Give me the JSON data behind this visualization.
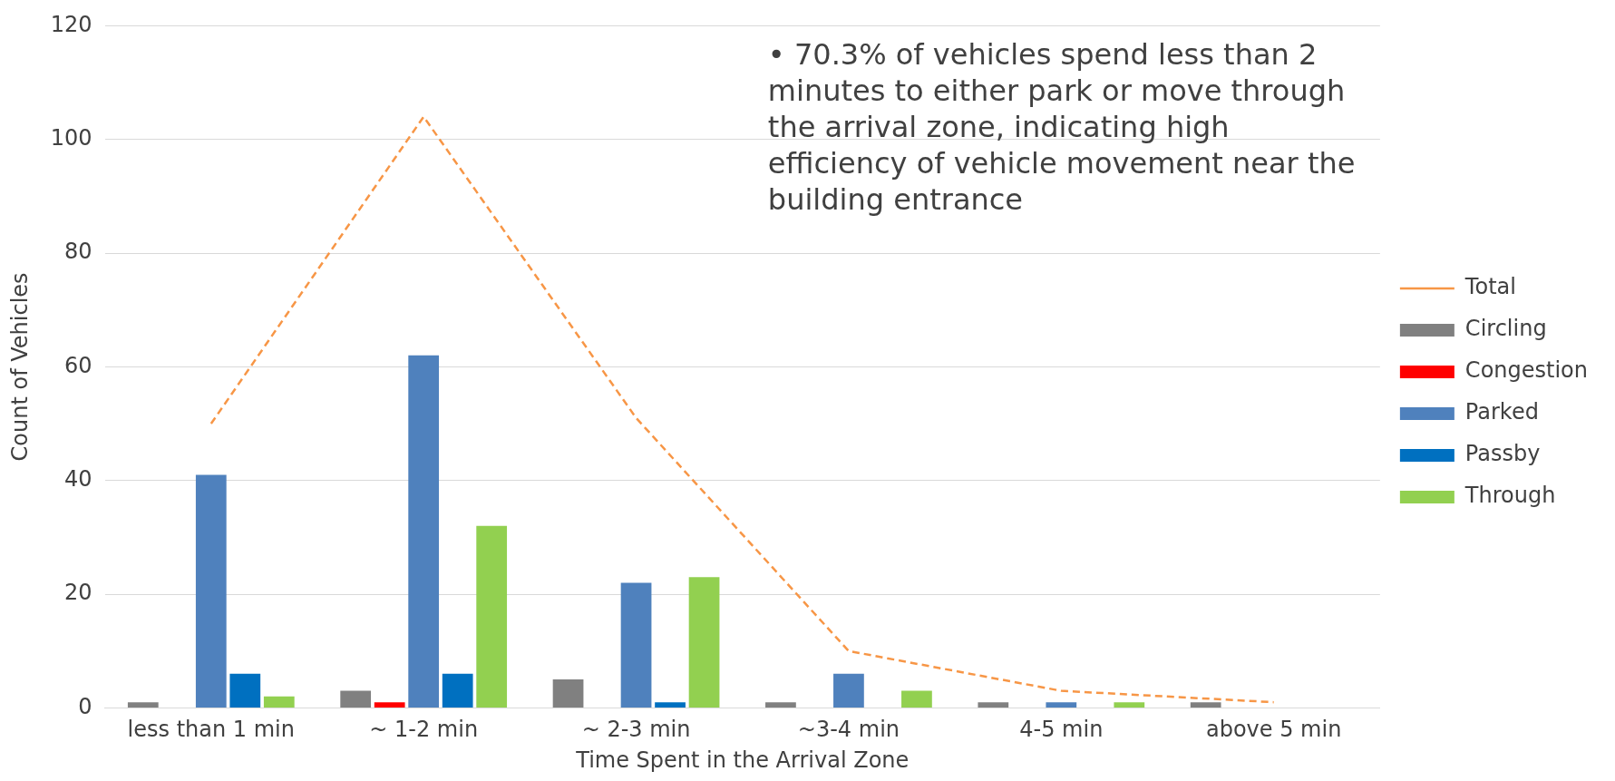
{
  "chart_data": {
    "type": "bar",
    "xlabel": "Time Spent in the Arrival Zone",
    "ylabel": "Count of Vehicles",
    "categories": [
      "less than 1 min",
      "~ 1-2 min",
      "~ 2-3 min",
      "~3-4 min",
      "4-5 min",
      "above 5 min"
    ],
    "series": [
      {
        "name": "Circling",
        "color": "#808080",
        "values": [
          1,
          3,
          5,
          1,
          1,
          1
        ]
      },
      {
        "name": "Congestion",
        "color": "#ff0000",
        "values": [
          0,
          1,
          0,
          0,
          0,
          0
        ]
      },
      {
        "name": "Parked",
        "color": "#4f81bd",
        "values": [
          41,
          62,
          22,
          6,
          1,
          0
        ]
      },
      {
        "name": "Passby",
        "color": "#0070c0",
        "values": [
          6,
          6,
          1,
          0,
          0,
          0
        ]
      },
      {
        "name": "Through",
        "color": "#92d050",
        "values": [
          2,
          32,
          23,
          3,
          1,
          0
        ]
      },
      {
        "name": "Total",
        "type": "line",
        "color": "#f79646",
        "line_style": "dashed",
        "marker": "none",
        "values": [
          50,
          104,
          51,
          10,
          3,
          1
        ]
      }
    ],
    "ylim": [
      0,
      120
    ],
    "yticks": [
      0,
      20,
      40,
      60,
      80,
      100,
      120
    ],
    "grid": "y",
    "legend": "right",
    "annotations": [
      "• 70.3% of vehicles spend less than 2 minutes to either park or move through the arrival zone, indicating high efficiency of vehicle movement near the building entrance"
    ]
  }
}
